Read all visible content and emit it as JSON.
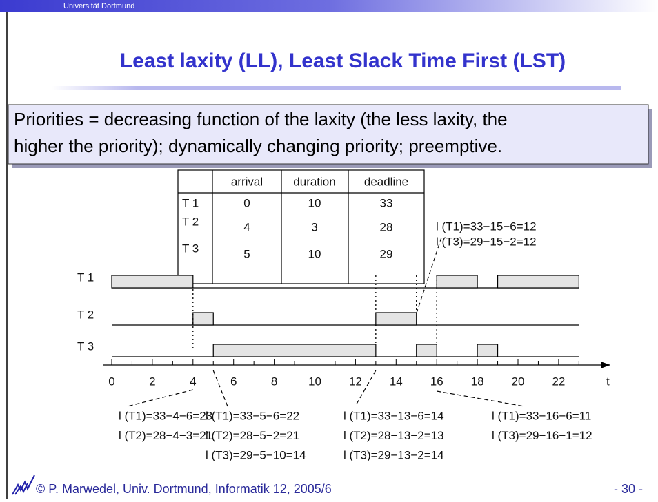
{
  "header": {
    "university": "Universität Dortmund",
    "title": "Least laxity (LL), Least Slack Time First (LST)"
  },
  "summary": [
    "Priorities = decreasing function of the laxity (the less laxity, the",
    "higher the priority); dynamically changing priority; preemptive."
  ],
  "table": {
    "columns": [
      "arrival",
      "duration",
      "deadline"
    ],
    "rows": [
      [
        "T 1",
        "0",
        "10",
        "33"
      ],
      [
        "T 2",
        "4",
        "3",
        "28"
      ],
      [
        "T 3",
        "5",
        "10",
        "29"
      ]
    ]
  },
  "timeline": {
    "axis_label": "t",
    "ticks": [
      0,
      2,
      4,
      6,
      8,
      10,
      12,
      14,
      16,
      18,
      20,
      22
    ],
    "tasks": [
      {
        "name": "T 1",
        "segments": [
          [
            0,
            4
          ],
          [
            16,
            18
          ],
          [
            19,
            23
          ]
        ]
      },
      {
        "name": "T 2",
        "segments": [
          [
            4,
            5
          ],
          [
            13,
            15
          ]
        ]
      },
      {
        "name": "T 3",
        "segments": [
          [
            5,
            13
          ],
          [
            15,
            16
          ],
          [
            18,
            19
          ]
        ]
      }
    ]
  },
  "annotations": {
    "t15": [
      "l (T1)=33−15−6=12",
      "l (T3)=29−15−2=12"
    ],
    "t4": [
      "l (T1)=33−4−6=23",
      "l (T2)=28−4−3=21"
    ],
    "t5": [
      "l (T1)=33−5−6=22",
      "l (T2)=28−5−2=21",
      "l (T3)=29−5−10=14"
    ],
    "t13": [
      "l (T1)=33−13−6=14",
      "l (T2)=28−13−2=13",
      "l (T3)=29−13−2=14"
    ],
    "t16": [
      "l (T1)=33−16−6=11",
      "l (T3)=29−16−1=12"
    ]
  },
  "footer": {
    "author": "© P. Marwedel, Univ. Dortmund, Informatik 12, 2005/6",
    "page": "- 30 -"
  }
}
